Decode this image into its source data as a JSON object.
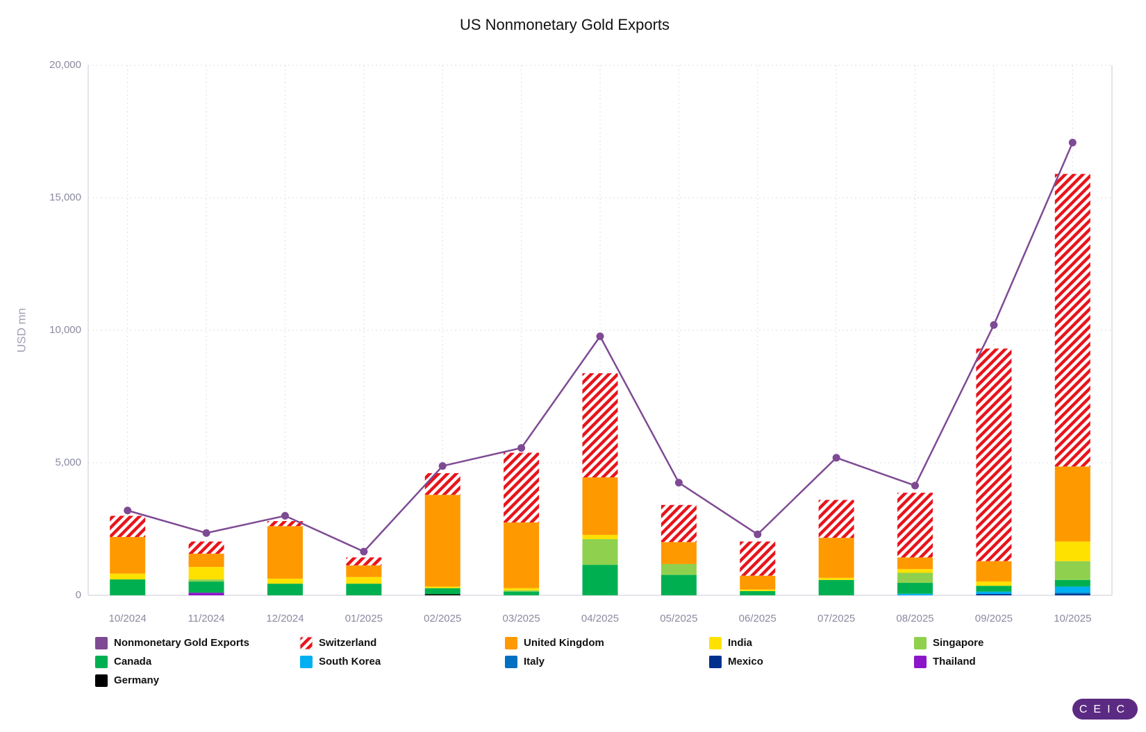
{
  "chart_data": {
    "type": "bar",
    "stacked": true,
    "title": "US Nonmonetary Gold Exports",
    "y_label": "USD mn",
    "watermark": "CEIC",
    "grid": true,
    "categories": [
      "10/2024",
      "11/2024",
      "12/2024",
      "01/2025",
      "02/2025",
      "03/2025",
      "04/2025",
      "05/2025",
      "06/2025",
      "07/2025",
      "08/2025",
      "09/2025",
      "10/2025"
    ],
    "ylim": [
      0,
      20000
    ],
    "yticks": [
      0,
      {
        "value": 5000,
        "label": "5,000"
      },
      {
        "value": 10000,
        "label": "10,000"
      },
      {
        "value": 15000,
        "label": "15,000"
      },
      {
        "value": 20000,
        "label": "20,000"
      }
    ],
    "series": [
      {
        "name": "Nonmonetary Gold Exports",
        "type": "line",
        "color": "#7e4a93",
        "values": [
          3200,
          2350,
          3000,
          1650,
          4880,
          5560,
          9770,
          4250,
          2300,
          5190,
          4140,
          10200,
          17080
        ]
      },
      {
        "name": "Switzerland",
        "color": "#e8141b",
        "hatch": true,
        "values": [
          800,
          460,
          190,
          300,
          820,
          2630,
          3930,
          1400,
          1290,
          1430,
          2440,
          8020,
          11040
        ]
      },
      {
        "name": "United Kingdom",
        "color": "#ff9900",
        "values": [
          1380,
          500,
          1980,
          440,
          3460,
          2480,
          2170,
          830,
          520,
          1510,
          440,
          770,
          2830
        ]
      },
      {
        "name": "India",
        "color": "#ffe100",
        "values": [
          220,
          470,
          190,
          250,
          60,
          80,
          160,
          0,
          60,
          80,
          140,
          160,
          740
        ]
      },
      {
        "name": "Singapore",
        "color": "#8fd14f",
        "values": [
          0,
          80,
          0,
          0,
          0,
          50,
          970,
          410,
          0,
          0,
          380,
          0,
          710
        ]
      },
      {
        "name": "Canada",
        "color": "#00b050",
        "values": [
          600,
          420,
          440,
          440,
          230,
          140,
          1150,
          770,
          160,
          580,
          410,
          220,
          250
        ]
      },
      {
        "name": "South Korea",
        "color": "#00b0f0",
        "values": [
          0,
          0,
          0,
          0,
          0,
          0,
          0,
          0,
          0,
          0,
          60,
          90,
          230
        ]
      },
      {
        "name": "Italy",
        "color": "#0070c0",
        "values": [
          0,
          0,
          0,
          0,
          0,
          0,
          0,
          0,
          0,
          0,
          0,
          0,
          50
        ]
      },
      {
        "name": "Mexico",
        "color": "#002f8e",
        "values": [
          0,
          0,
          0,
          0,
          0,
          0,
          0,
          0,
          0,
          0,
          0,
          50,
          50
        ]
      },
      {
        "name": "Thailand",
        "color": "#8b16c8",
        "values": [
          0,
          100,
          0,
          0,
          0,
          0,
          0,
          0,
          0,
          0,
          0,
          0,
          0
        ]
      },
      {
        "name": "Germany",
        "color": "#000000",
        "values": [
          0,
          0,
          0,
          0,
          40,
          0,
          0,
          0,
          0,
          0,
          0,
          0,
          0
        ]
      }
    ]
  }
}
